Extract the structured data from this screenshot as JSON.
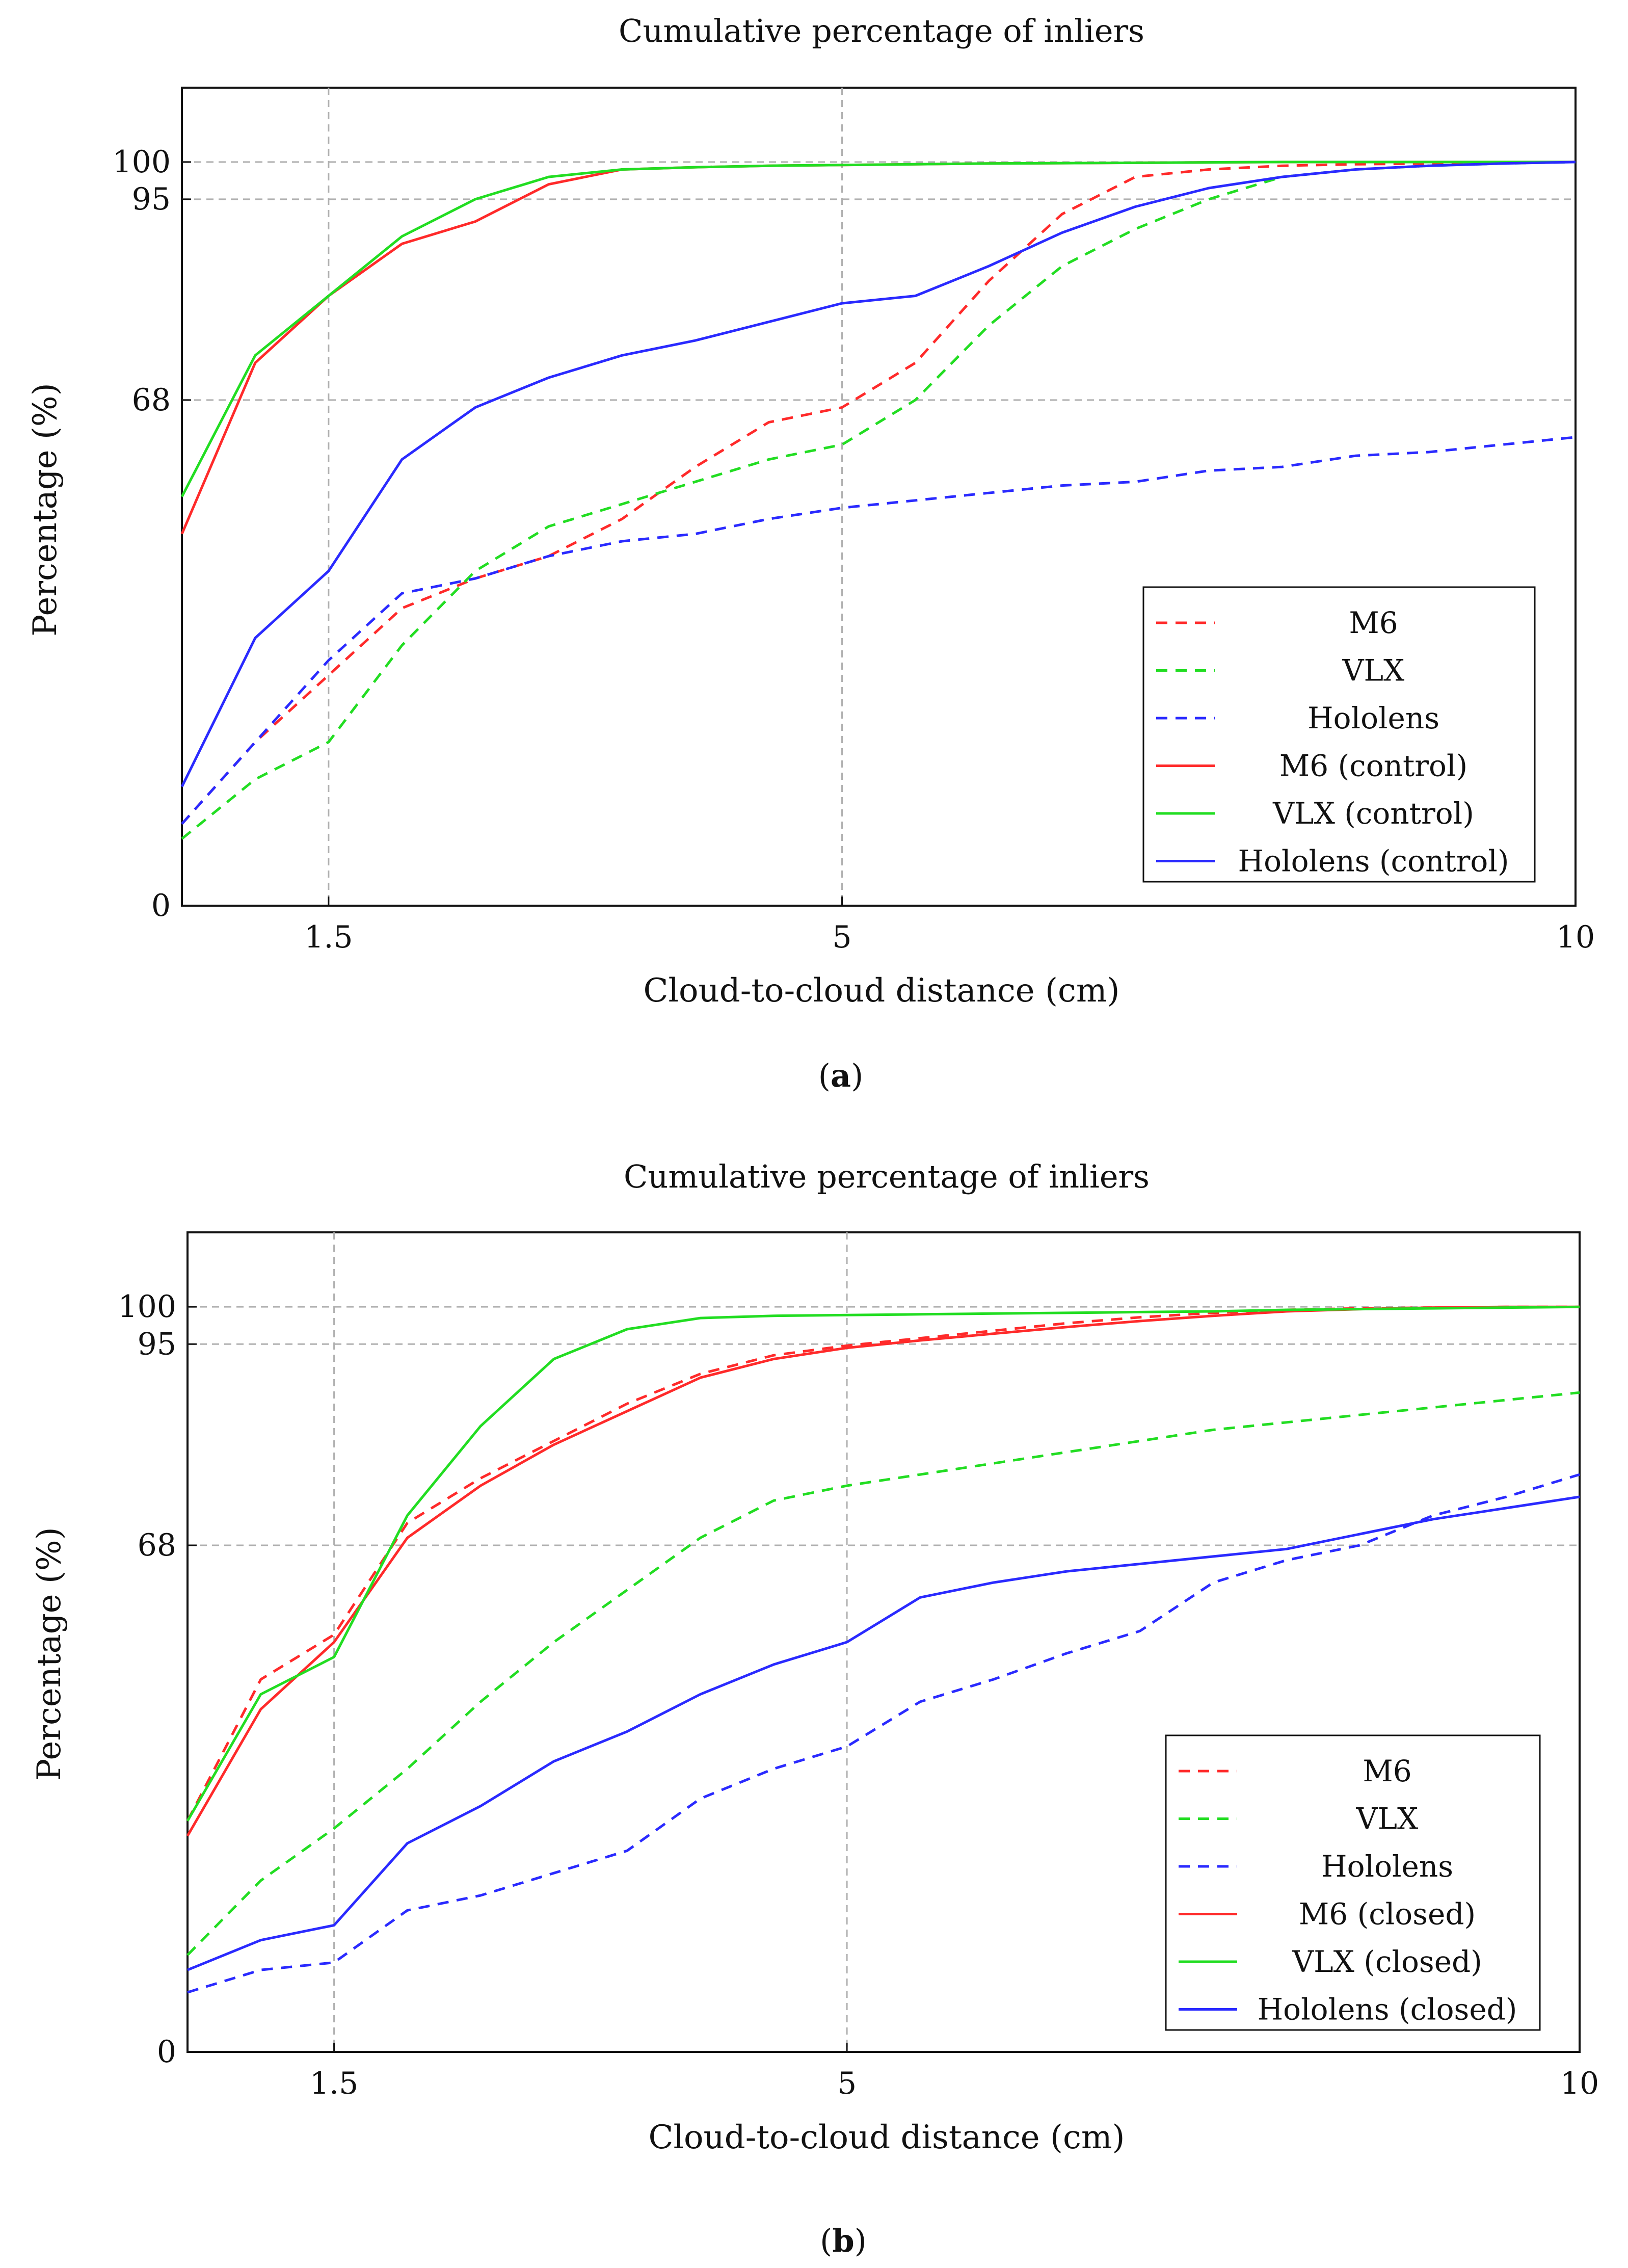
{
  "panels": [
    {
      "caption_letter": "a",
      "chart_data": {
        "type": "line",
        "title": "Cumulative percentage of inliers",
        "xlabel": "Cloud-to-cloud distance (cm)",
        "ylabel": "Percentage (%)",
        "xlim": [
          0.5,
          10
        ],
        "ylim": [
          0,
          110
        ],
        "xticks": [
          1.5,
          5,
          10
        ],
        "xtick_labels": [
          "1.5",
          "5",
          "10"
        ],
        "yticks": [
          0,
          68,
          95,
          100
        ],
        "ytick_labels": [
          "0",
          "68",
          "95",
          "100"
        ],
        "grid": true,
        "legend_position": "bottom-right",
        "x": [
          0.5,
          1.0,
          1.5,
          2.0,
          2.5,
          3.0,
          3.5,
          4.0,
          4.5,
          5.0,
          5.5,
          6.0,
          6.5,
          7.0,
          7.5,
          8.0,
          8.5,
          9.0,
          9.5,
          10.0
        ],
        "series": [
          {
            "name": "M6",
            "style": "dashed",
            "color": "#ff2a2a",
            "values": [
              11,
              22,
              31,
              40,
              44,
              47,
              52,
              59,
              65,
              67,
              73,
              84,
              93,
              98,
              99,
              99.5,
              99.7,
              99.8,
              99.9,
              100
            ]
          },
          {
            "name": "VLX",
            "style": "dashed",
            "color": "#22dd22",
            "values": [
              9,
              17,
              22,
              35,
              45,
              51,
              54,
              57,
              60,
              62,
              68,
              78,
              86,
              91,
              95,
              98,
              99,
              99.5,
              99.8,
              100
            ]
          },
          {
            "name": "Hololens",
            "style": "dashed",
            "color": "#2a2aff",
            "values": [
              11,
              22,
              33,
              42,
              44,
              47,
              49,
              50,
              52,
              53.5,
              54.5,
              55.5,
              56.5,
              57,
              58.5,
              59,
              60.5,
              61,
              62,
              63
            ]
          },
          {
            "name": "M6 (control)",
            "style": "solid",
            "color": "#ff2a2a",
            "values": [
              50,
              73,
              82,
              89,
              92,
              97,
              99,
              99.3,
              99.5,
              99.6,
              99.7,
              99.8,
              99.85,
              99.9,
              99.95,
              100,
              100,
              100,
              100,
              100
            ]
          },
          {
            "name": "VLX (control)",
            "style": "solid",
            "color": "#22dd22",
            "values": [
              55,
              74,
              82,
              90,
              95,
              98,
              99,
              99.3,
              99.5,
              99.6,
              99.7,
              99.8,
              99.85,
              99.9,
              99.95,
              100,
              100,
              100,
              100,
              100
            ]
          },
          {
            "name": "Hololens (control)",
            "style": "solid",
            "color": "#2a2aff",
            "values": [
              16,
              36,
              45,
              60,
              67,
              71,
              74,
              76,
              78.5,
              81,
              82,
              86,
              90.5,
              94,
              96.5,
              98,
              99,
              99.5,
              99.8,
              100
            ]
          }
        ]
      }
    },
    {
      "caption_letter": "b",
      "chart_data": {
        "type": "line",
        "title": "Cumulative percentage of inliers",
        "xlabel": "Cloud-to-cloud distance (cm)",
        "ylabel": "Percentage (%)",
        "xlim": [
          0.5,
          10
        ],
        "ylim": [
          0,
          110
        ],
        "xticks": [
          1.5,
          5,
          10
        ],
        "xtick_labels": [
          "1.5",
          "5",
          "10"
        ],
        "yticks": [
          0,
          68,
          95,
          100
        ],
        "ytick_labels": [
          "0",
          "68",
          "95",
          "100"
        ],
        "grid": true,
        "legend_position": "bottom-right",
        "x": [
          0.5,
          1.0,
          1.5,
          2.0,
          2.5,
          3.0,
          3.5,
          4.0,
          4.5,
          5.0,
          5.5,
          6.0,
          6.5,
          7.0,
          7.5,
          8.0,
          8.5,
          9.0,
          9.5,
          10.0
        ],
        "series": [
          {
            "name": "M6",
            "style": "dashed",
            "color": "#ff2a2a",
            "values": [
              31,
              50,
              56,
              71,
              77,
              82,
              87,
              91,
              93.5,
              94.8,
              95.8,
              96.8,
              97.8,
              98.6,
              99.2,
              99.6,
              99.8,
              99.9,
              100,
              100
            ]
          },
          {
            "name": "VLX",
            "style": "dashed",
            "color": "#22dd22",
            "values": [
              13,
              23,
              30,
              38,
              47,
              55,
              62,
              69,
              74,
              76,
              77.5,
              79,
              80.5,
              82,
              83.5,
              84.5,
              85.5,
              86.5,
              87.5,
              88.5
            ]
          },
          {
            "name": "Hololens",
            "style": "dashed",
            "color": "#2a2aff",
            "values": [
              8,
              11,
              12,
              19,
              21,
              24,
              27,
              34,
              38,
              41,
              47,
              50,
              53.5,
              56.5,
              63,
              66,
              68,
              72,
              74.5,
              77.5
            ]
          },
          {
            "name": "M6 (closed)",
            "style": "solid",
            "color": "#ff2a2a",
            "values": [
              29,
              46,
              55,
              69,
              76,
              81.5,
              86,
              90.5,
              93,
              94.5,
              95.5,
              96.4,
              97.3,
              98.1,
              98.8,
              99.4,
              99.7,
              99.9,
              100,
              100
            ]
          },
          {
            "name": "VLX (closed)",
            "style": "solid",
            "color": "#22dd22",
            "values": [
              31,
              48,
              53,
              72,
              84,
              93,
              97,
              98.5,
              98.8,
              98.9,
              99.0,
              99.1,
              99.2,
              99.3,
              99.4,
              99.6,
              99.7,
              99.8,
              99.9,
              100
            ]
          },
          {
            "name": "Hololens (closed)",
            "style": "solid",
            "color": "#2a2aff",
            "values": [
              11,
              15,
              17,
              28,
              33,
              39,
              43,
              48,
              52,
              55,
              61,
              63,
              64.5,
              65.5,
              66.5,
              67.5,
              69.5,
              71.5,
              73,
              74.5
            ]
          }
        ]
      }
    }
  ]
}
